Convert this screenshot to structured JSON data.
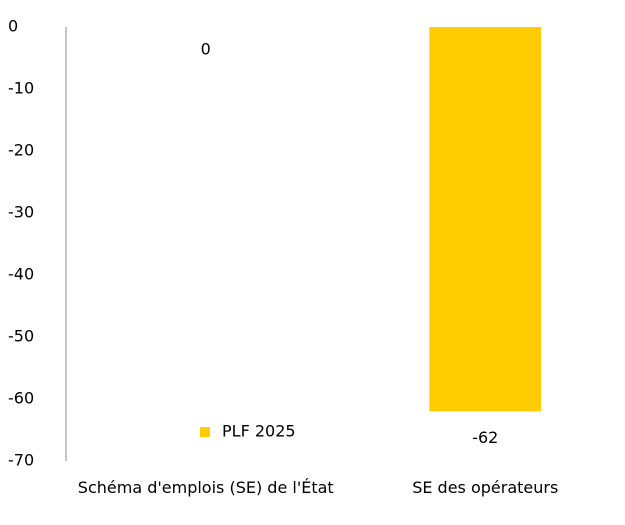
{
  "chart_data": {
    "type": "bar",
    "categories": [
      "Schéma d'emplois (SE) de l'État",
      "SE des opérateurs"
    ],
    "series": [
      {
        "name": "PLF 2025",
        "color": "#FFCC00",
        "values": [
          0,
          -62
        ]
      }
    ],
    "ylim": [
      -70,
      0
    ],
    "yticks": [
      0,
      -10,
      -20,
      -30,
      -40,
      -50,
      -60,
      -70
    ],
    "legend": "bottom-left",
    "grid": false
  }
}
